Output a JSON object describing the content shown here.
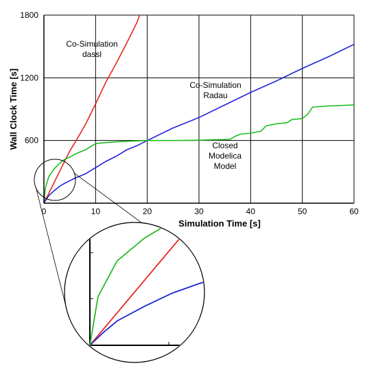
{
  "chart_data": {
    "type": "line",
    "xlabel": "Simulation Time [s]",
    "ylabel": "Wall Clock Time [s]",
    "xlim": [
      0,
      60
    ],
    "ylim": [
      0,
      1800
    ],
    "x_ticks": [
      "0",
      "10",
      "20",
      "30",
      "40",
      "50",
      "60"
    ],
    "y_ticks": [
      "600",
      "1200",
      "1800"
    ],
    "grid": true,
    "colors": {
      "red": "#e8231f",
      "blue": "#1f23d8",
      "green": "#22bb22"
    },
    "series": [
      {
        "name": "Co-Simulation dassl",
        "color": "#e8231f",
        "x": [
          0,
          0.5,
          1,
          2,
          3,
          4,
          5,
          6,
          8,
          10,
          12,
          14,
          16,
          18,
          18.5
        ],
        "y": [
          0,
          50,
          100,
          200,
          300,
          400,
          500,
          580,
          750,
          950,
          1160,
          1340,
          1530,
          1730,
          1800
        ]
      },
      {
        "name": "Co-Simulation Radau",
        "color": "#1f23d8",
        "x": [
          0,
          0.5,
          1,
          2,
          3,
          4,
          5,
          6,
          8,
          10,
          12,
          14,
          16,
          18,
          20,
          25,
          30,
          35,
          40,
          45,
          50,
          55,
          60
        ],
        "y": [
          0,
          40,
          75,
          120,
          160,
          190,
          215,
          240,
          280,
          340,
          400,
          450,
          510,
          550,
          600,
          720,
          820,
          940,
          1060,
          1170,
          1290,
          1400,
          1520
        ]
      },
      {
        "name": "Closed Modelica Model",
        "color": "#22bb22",
        "x": [
          0,
          0.3,
          1,
          2,
          3,
          4,
          5,
          6,
          7,
          8,
          9,
          10,
          12,
          15,
          20,
          25,
          30,
          36,
          37,
          38,
          40,
          42,
          43,
          45,
          47,
          48,
          50,
          51,
          52,
          55,
          60
        ],
        "y": [
          0,
          150,
          260,
          330,
          380,
          420,
          440,
          470,
          490,
          510,
          540,
          570,
          580,
          590,
          600,
          600,
          603,
          610,
          640,
          660,
          670,
          690,
          740,
          760,
          770,
          800,
          810,
          850,
          920,
          930,
          940
        ]
      }
    ],
    "annotations": [
      {
        "lines": [
          "Co-Simulation",
          "dassl"
        ]
      },
      {
        "lines": [
          "Co-Simulation",
          "Radau"
        ]
      },
      {
        "lines": [
          "Closed",
          "Modelica",
          "Model"
        ]
      }
    ],
    "inset": {
      "xlim": [
        0,
        5
      ],
      "ylim": [
        0,
        450
      ]
    }
  }
}
